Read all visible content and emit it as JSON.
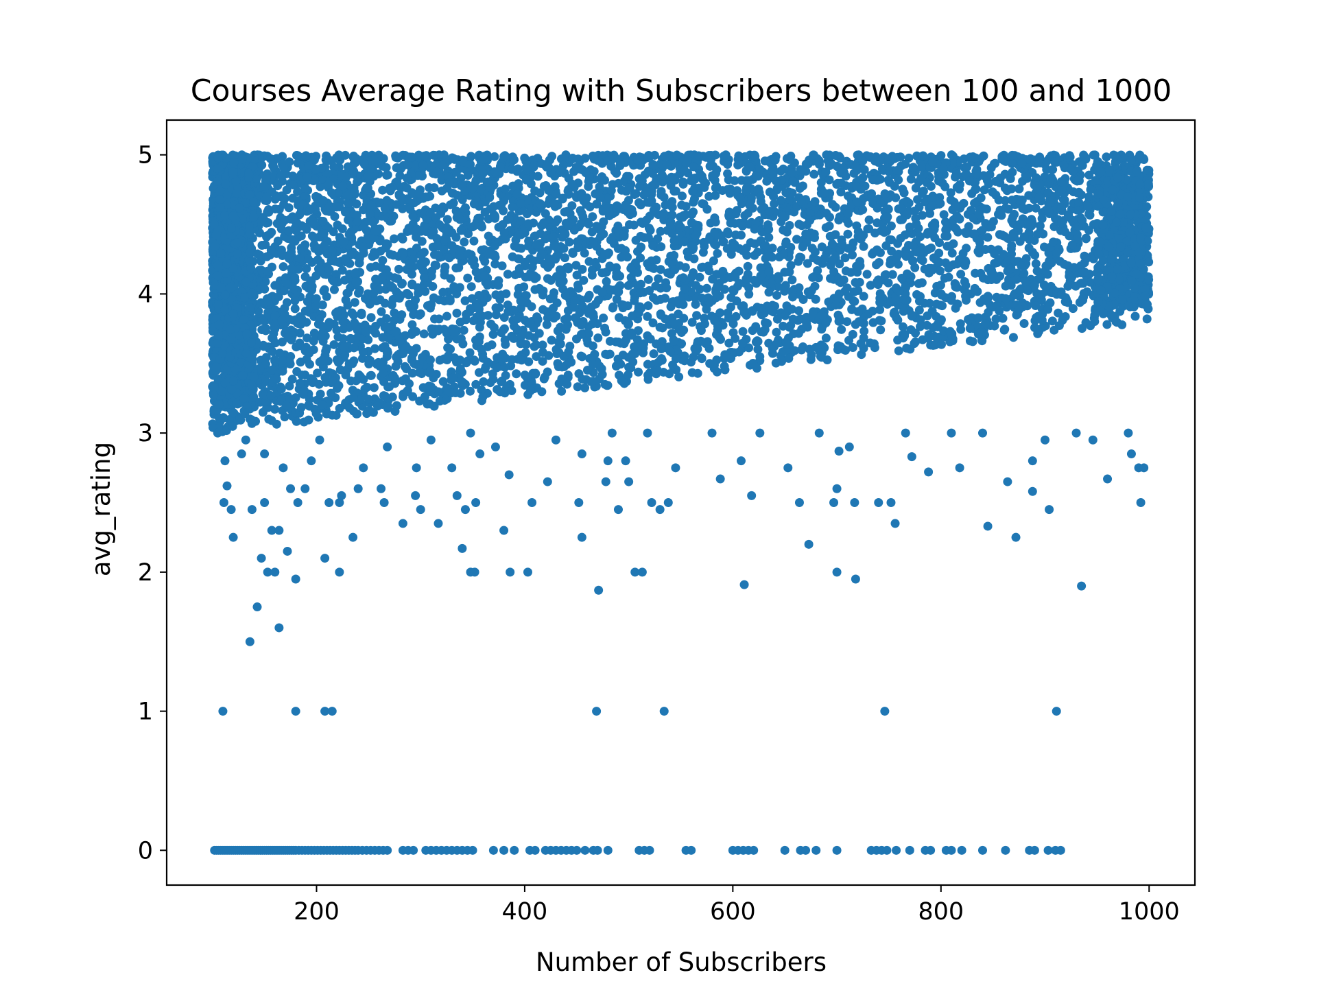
{
  "chart_data": {
    "type": "scatter",
    "title": "Courses Average Rating with Subscribers between 100 and 1000",
    "xlabel": "Number of Subscribers",
    "ylabel": "avg_rating",
    "xlim": [
      56,
      1044
    ],
    "ylim": [
      -0.25,
      5.25
    ],
    "xticks": [
      "200",
      "400",
      "600",
      "800",
      "1000"
    ],
    "yticks": [
      "0",
      "1",
      "2",
      "3",
      "4",
      "5"
    ],
    "grid": false,
    "legend": "none",
    "marker_color": "#1f77b4",
    "dense_band": {
      "description_x": [
        100,
        1000
      ],
      "y_min_at_start": 3.0,
      "y_min_at_end": 3.8,
      "y_max": 5.0
    },
    "points": [
      {
        "x": 110,
        "y": 1.0
      },
      {
        "x": 180,
        "y": 1.0
      },
      {
        "x": 208,
        "y": 1.0
      },
      {
        "x": 215,
        "y": 1.0
      },
      {
        "x": 469,
        "y": 1.0
      },
      {
        "x": 534,
        "y": 1.0
      },
      {
        "x": 746,
        "y": 1.0
      },
      {
        "x": 911,
        "y": 1.0
      },
      {
        "x": 136,
        "y": 1.5
      },
      {
        "x": 143,
        "y": 1.75
      },
      {
        "x": 164,
        "y": 1.6
      },
      {
        "x": 180,
        "y": 1.95
      },
      {
        "x": 471,
        "y": 1.87
      },
      {
        "x": 611,
        "y": 1.91
      },
      {
        "x": 718,
        "y": 1.95
      },
      {
        "x": 935,
        "y": 1.9
      },
      {
        "x": 147,
        "y": 2.1
      },
      {
        "x": 153,
        "y": 2.0
      },
      {
        "x": 160,
        "y": 2.0
      },
      {
        "x": 172,
        "y": 2.15
      },
      {
        "x": 208,
        "y": 2.1
      },
      {
        "x": 222,
        "y": 2.0
      },
      {
        "x": 340,
        "y": 2.17
      },
      {
        "x": 348,
        "y": 2.0
      },
      {
        "x": 352,
        "y": 2.0
      },
      {
        "x": 386,
        "y": 2.0
      },
      {
        "x": 403,
        "y": 2.0
      },
      {
        "x": 506,
        "y": 2.0
      },
      {
        "x": 513,
        "y": 2.0
      },
      {
        "x": 700,
        "y": 2.0
      },
      {
        "x": 673,
        "y": 2.2
      },
      {
        "x": 120,
        "y": 2.25
      },
      {
        "x": 235,
        "y": 2.25
      },
      {
        "x": 380,
        "y": 2.3
      },
      {
        "x": 455,
        "y": 2.25
      },
      {
        "x": 845,
        "y": 2.33
      },
      {
        "x": 872,
        "y": 2.25
      },
      {
        "x": 756,
        "y": 2.35
      },
      {
        "x": 317,
        "y": 2.35
      },
      {
        "x": 283,
        "y": 2.35
      },
      {
        "x": 157,
        "y": 2.3
      },
      {
        "x": 164,
        "y": 2.3
      },
      {
        "x": 111,
        "y": 2.5
      },
      {
        "x": 118,
        "y": 2.45
      },
      {
        "x": 138,
        "y": 2.45
      },
      {
        "x": 150,
        "y": 2.5
      },
      {
        "x": 182,
        "y": 2.5
      },
      {
        "x": 212,
        "y": 2.5
      },
      {
        "x": 222,
        "y": 2.5
      },
      {
        "x": 265,
        "y": 2.5
      },
      {
        "x": 300,
        "y": 2.45
      },
      {
        "x": 343,
        "y": 2.45
      },
      {
        "x": 353,
        "y": 2.5
      },
      {
        "x": 407,
        "y": 2.5
      },
      {
        "x": 452,
        "y": 2.5
      },
      {
        "x": 490,
        "y": 2.45
      },
      {
        "x": 522,
        "y": 2.5
      },
      {
        "x": 530,
        "y": 2.45
      },
      {
        "x": 538,
        "y": 2.5
      },
      {
        "x": 664,
        "y": 2.5
      },
      {
        "x": 697,
        "y": 2.5
      },
      {
        "x": 717,
        "y": 2.5
      },
      {
        "x": 740,
        "y": 2.5
      },
      {
        "x": 752,
        "y": 2.5
      },
      {
        "x": 904,
        "y": 2.45
      },
      {
        "x": 992,
        "y": 2.5
      },
      {
        "x": 114,
        "y": 2.62
      },
      {
        "x": 168,
        "y": 2.75
      },
      {
        "x": 175,
        "y": 2.6
      },
      {
        "x": 189,
        "y": 2.6
      },
      {
        "x": 224,
        "y": 2.55
      },
      {
        "x": 240,
        "y": 2.6
      },
      {
        "x": 262,
        "y": 2.6
      },
      {
        "x": 295,
        "y": 2.55
      },
      {
        "x": 335,
        "y": 2.55
      },
      {
        "x": 478,
        "y": 2.65
      },
      {
        "x": 500,
        "y": 2.65
      },
      {
        "x": 588,
        "y": 2.67
      },
      {
        "x": 618,
        "y": 2.55
      },
      {
        "x": 700,
        "y": 2.6
      },
      {
        "x": 864,
        "y": 2.65
      },
      {
        "x": 888,
        "y": 2.58
      },
      {
        "x": 960,
        "y": 2.67
      },
      {
        "x": 385,
        "y": 2.7
      },
      {
        "x": 422,
        "y": 2.65
      },
      {
        "x": 112,
        "y": 2.8
      },
      {
        "x": 128,
        "y": 2.85
      },
      {
        "x": 150,
        "y": 2.85
      },
      {
        "x": 195,
        "y": 2.8
      },
      {
        "x": 245,
        "y": 2.75
      },
      {
        "x": 296,
        "y": 2.75
      },
      {
        "x": 330,
        "y": 2.75
      },
      {
        "x": 357,
        "y": 2.85
      },
      {
        "x": 455,
        "y": 2.85
      },
      {
        "x": 480,
        "y": 2.8
      },
      {
        "x": 497,
        "y": 2.8
      },
      {
        "x": 545,
        "y": 2.75
      },
      {
        "x": 608,
        "y": 2.8
      },
      {
        "x": 653,
        "y": 2.75
      },
      {
        "x": 702,
        "y": 2.87
      },
      {
        "x": 712,
        "y": 2.9
      },
      {
        "x": 772,
        "y": 2.83
      },
      {
        "x": 788,
        "y": 2.72
      },
      {
        "x": 818,
        "y": 2.75
      },
      {
        "x": 888,
        "y": 2.8
      },
      {
        "x": 983,
        "y": 2.85
      },
      {
        "x": 990,
        "y": 2.75
      },
      {
        "x": 995,
        "y": 2.75
      },
      {
        "x": 372,
        "y": 2.9
      },
      {
        "x": 105,
        "y": 3.0
      },
      {
        "x": 132,
        "y": 2.95
      },
      {
        "x": 203,
        "y": 2.95
      },
      {
        "x": 268,
        "y": 2.9
      },
      {
        "x": 310,
        "y": 2.95
      },
      {
        "x": 348,
        "y": 3.0
      },
      {
        "x": 430,
        "y": 2.95
      },
      {
        "x": 484,
        "y": 3.0
      },
      {
        "x": 518,
        "y": 3.0
      },
      {
        "x": 580,
        "y": 3.0
      },
      {
        "x": 626,
        "y": 3.0
      },
      {
        "x": 683,
        "y": 3.0
      },
      {
        "x": 766,
        "y": 3.0
      },
      {
        "x": 810,
        "y": 3.0
      },
      {
        "x": 840,
        "y": 3.0
      },
      {
        "x": 900,
        "y": 2.95
      },
      {
        "x": 930,
        "y": 3.0
      },
      {
        "x": 946,
        "y": 2.95
      },
      {
        "x": 980,
        "y": 3.0
      }
    ],
    "zero_row": {
      "y": 0,
      "x": [
        102,
        104,
        106,
        108,
        110,
        112,
        114,
        116,
        118,
        120,
        122,
        124,
        126,
        128,
        130,
        132,
        134,
        136,
        138,
        140,
        142,
        144,
        146,
        148,
        150,
        152,
        154,
        156,
        158,
        160,
        162,
        164,
        166,
        168,
        170,
        172,
        174,
        176,
        178,
        180,
        183,
        186,
        189,
        192,
        195,
        198,
        201,
        204,
        207,
        210,
        213,
        216,
        219,
        222,
        225,
        228,
        231,
        234,
        237,
        240,
        244,
        248,
        252,
        256,
        260,
        264,
        268,
        283,
        288,
        293,
        305,
        310,
        315,
        320,
        325,
        330,
        335,
        340,
        345,
        350,
        370,
        380,
        390,
        405,
        410,
        420,
        425,
        430,
        435,
        440,
        445,
        450,
        458,
        466,
        470,
        480,
        510,
        515,
        520,
        555,
        560,
        600,
        605,
        610,
        615,
        620,
        650,
        665,
        670,
        680,
        700,
        733,
        738,
        743,
        748,
        757,
        770,
        785,
        790,
        805,
        810,
        820,
        840,
        862,
        885,
        890,
        903,
        910,
        915
      ]
    }
  }
}
